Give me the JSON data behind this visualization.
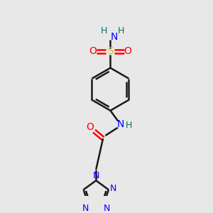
{
  "bg_color": "#e8e8e8",
  "bond_color": "#1a1a1a",
  "N_color": "#0000ff",
  "O_color": "#ff0000",
  "S_color": "#cccc00",
  "H_color": "#007070",
  "lw": 1.8,
  "fig_size": [
    3.0,
    3.0
  ],
  "dpi": 100,
  "xlim": [
    0,
    10
  ],
  "ylim": [
    0,
    10
  ]
}
